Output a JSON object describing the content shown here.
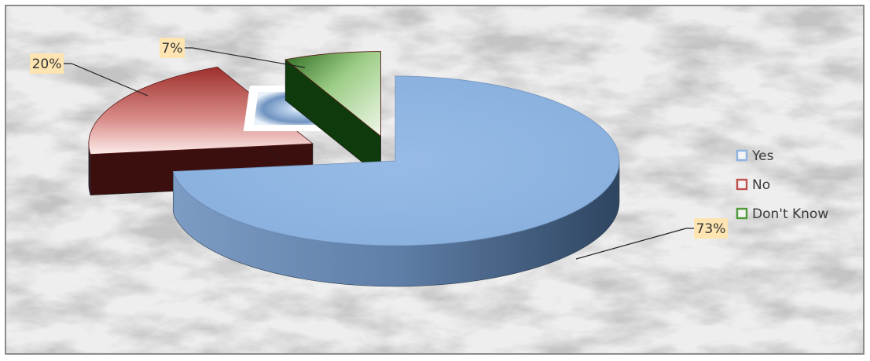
{
  "chart_data": {
    "type": "pie",
    "style": "3d-exploded",
    "title": "",
    "legend_position": "right",
    "slices": [
      {
        "name": "Yes",
        "value": 73,
        "label": "73%",
        "color": "#8db3e2"
      },
      {
        "name": "No",
        "value": 20,
        "label": "20%",
        "color": "#c0504d"
      },
      {
        "name": "Don't Know",
        "value": 7,
        "label": "7%",
        "color": "#4f9a3a"
      }
    ],
    "label_box_color": "#fde4b1"
  }
}
